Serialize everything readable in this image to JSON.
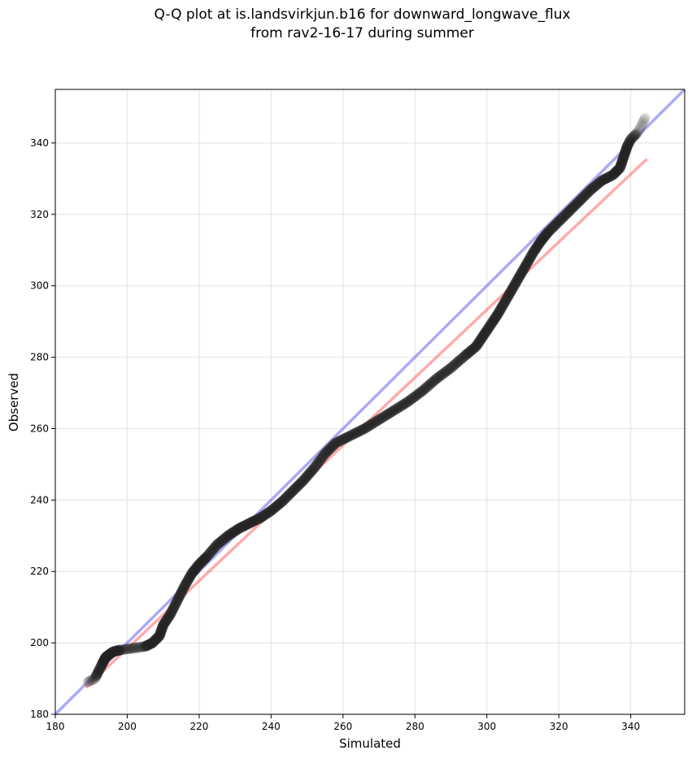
{
  "chart_data": {
    "type": "scatter",
    "title_lines": [
      "Q-Q plot at is.landsvirkjun.b16 for downward_longwave_flux",
      "from rav2-16-17 during summer"
    ],
    "xlabel": "Simulated",
    "ylabel": "Observed",
    "xlim": [
      180,
      355
    ],
    "ylim": [
      180,
      355
    ],
    "xticks": [
      180,
      200,
      220,
      240,
      260,
      280,
      300,
      320,
      340
    ],
    "yticks": [
      180,
      200,
      220,
      240,
      260,
      280,
      300,
      320,
      340
    ],
    "grid": true,
    "quantile_curve": {
      "x": [
        189,
        191,
        192,
        193,
        194,
        196,
        198,
        205,
        207,
        209,
        210,
        212,
        214,
        216,
        218,
        220,
        222,
        225,
        228,
        231,
        234,
        237,
        240,
        243,
        246,
        249,
        252,
        255,
        258,
        262,
        266,
        270,
        274,
        278,
        282,
        286,
        290,
        294,
        297,
        299,
        301,
        303,
        305,
        307,
        309,
        311,
        313,
        315,
        317,
        320,
        323,
        326,
        329,
        332,
        335,
        337,
        338,
        339,
        340,
        342,
        344
      ],
      "y": [
        189,
        190,
        192,
        194,
        196,
        197.5,
        198,
        199,
        200,
        202,
        205,
        208,
        212,
        216,
        219.5,
        222,
        224,
        227.5,
        230,
        232,
        233.5,
        235,
        237,
        239.5,
        242.5,
        245.5,
        249,
        253,
        256,
        258,
        260,
        262.5,
        265,
        267.5,
        270.5,
        274,
        277,
        280.5,
        283,
        286,
        289,
        292,
        295.5,
        299,
        302.5,
        306,
        309.5,
        312.5,
        315,
        318,
        321,
        324,
        327,
        329.5,
        331,
        333,
        336,
        339,
        341,
        343,
        347
      ]
    },
    "fit_line": {
      "x": [
        188.5,
        344.5
      ],
      "y": [
        187.5,
        335.5
      ],
      "color": "#ff4444"
    },
    "identity_line": {
      "x": [
        180,
        355
      ],
      "y": [
        180,
        355
      ],
      "color": "#5555ee"
    }
  }
}
